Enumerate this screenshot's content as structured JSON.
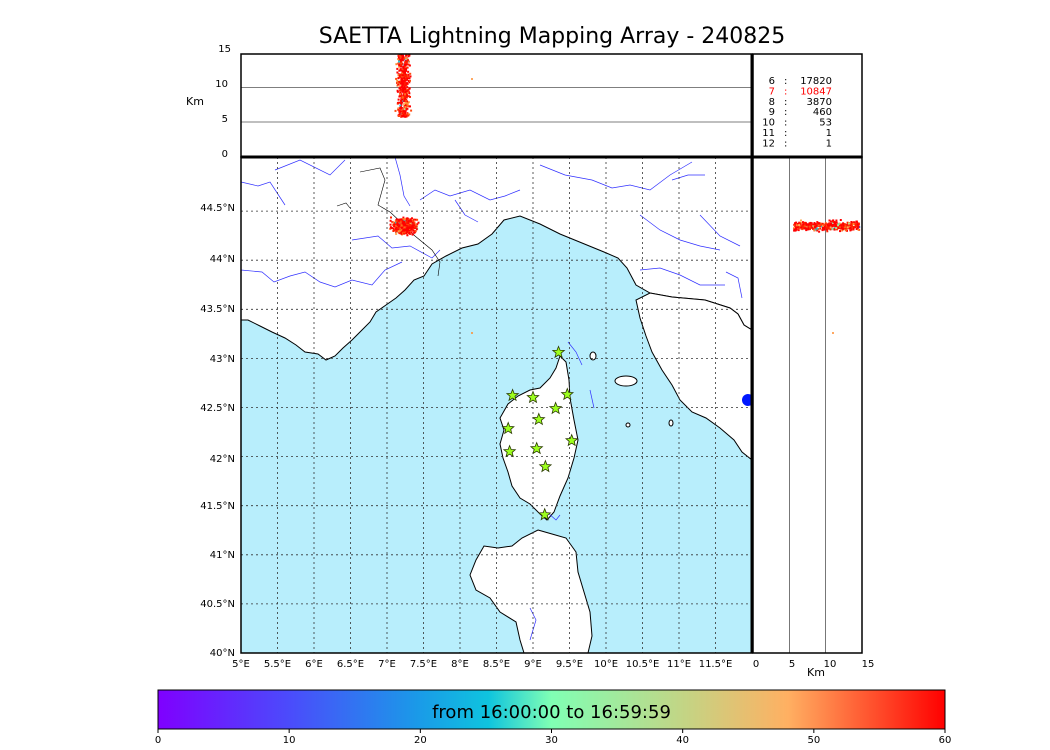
{
  "title": "SAETTA Lightning Mapping Array - 240825",
  "colorbar": {
    "label": "from 16:00:00 to 16:59:59",
    "ticks": [
      "0",
      "10",
      "20",
      "30",
      "40",
      "50",
      "60"
    ]
  },
  "map": {
    "lon_ticks": [
      "5°E",
      "5.5°E",
      "6°E",
      "6.5°E",
      "7°E",
      "7.5°E",
      "8°E",
      "8.5°E",
      "9°E",
      "9.5°E",
      "10°E",
      "10.5°E",
      "11°E",
      "11.5°E"
    ],
    "lat_ticks": [
      "40°N",
      "40.5°N",
      "41°N",
      "41.5°N",
      "42°N",
      "42.5°N",
      "43°N",
      "43.5°N",
      "44°N",
      "44.5°N"
    ],
    "lon_range": [
      5,
      12
    ],
    "lat_range": [
      40,
      44.95
    ],
    "sea_color": "#b8eefc",
    "land_color": "#ffffff",
    "river_color": "#3030ff",
    "grid": "dotted",
    "lightning_center": {
      "lon": 7.25,
      "lat": 44.27
    },
    "stations": [
      {
        "lon": 9.35,
        "lat": 43.0
      },
      {
        "lon": 8.72,
        "lat": 42.57
      },
      {
        "lon": 9.0,
        "lat": 42.55
      },
      {
        "lon": 9.47,
        "lat": 42.58
      },
      {
        "lon": 9.31,
        "lat": 42.44
      },
      {
        "lon": 9.08,
        "lat": 42.33
      },
      {
        "lon": 8.66,
        "lat": 42.24
      },
      {
        "lon": 9.53,
        "lat": 42.12
      },
      {
        "lon": 9.05,
        "lat": 42.04
      },
      {
        "lon": 8.68,
        "lat": 42.01
      },
      {
        "lon": 9.17,
        "lat": 41.86
      },
      {
        "lon": 9.16,
        "lat": 41.38
      }
    ]
  },
  "top_panel": {
    "ylabel": "Km",
    "yticks": [
      "0",
      "5",
      "10",
      "15"
    ]
  },
  "right_panel": {
    "xlabel": "Km",
    "xticks": [
      "0",
      "5",
      "10",
      "15"
    ]
  },
  "stats": [
    {
      "k": "6",
      "v": "17820",
      "color": "#000000"
    },
    {
      "k": "7",
      "v": "10847",
      "color": "#ff0000"
    },
    {
      "k": "8",
      "v": "3870",
      "color": "#000000"
    },
    {
      "k": "9",
      "v": "460",
      "color": "#000000"
    },
    {
      "k": "10",
      "v": "53",
      "color": "#000000"
    },
    {
      "k": "11",
      "v": "1",
      "color": "#000000"
    },
    {
      "k": "12",
      "v": "1",
      "color": "#000000"
    }
  ]
}
